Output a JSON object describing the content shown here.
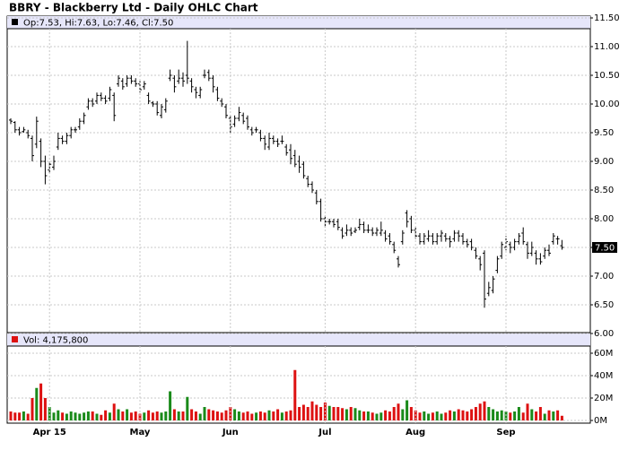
{
  "chart_data": [
    {
      "type": "ohlc",
      "title": "BBRY - Blackberry Ltd - Daily OHLC Chart",
      "legend_text": "Op:7.53, Hi:7.63, Lo:7.46, Cl:7.50",
      "last_label": "7.50",
      "color": "#000000",
      "grid": true,
      "ylim": [
        6,
        11.5
      ],
      "yticks": [
        {
          "value": 6,
          "label": "6.00"
        },
        {
          "value": 6.5,
          "label": "6.50"
        },
        {
          "value": 7,
          "label": "7.00"
        },
        {
          "value": 7.5,
          "label": "7.50"
        },
        {
          "value": 8,
          "label": "8.00"
        },
        {
          "value": 8.5,
          "label": "8.50"
        },
        {
          "value": 9,
          "label": "9.00"
        },
        {
          "value": 9.5,
          "label": "9.50"
        },
        {
          "value": 10,
          "label": "10.00"
        },
        {
          "value": 10.5,
          "label": "10.50"
        },
        {
          "value": 11,
          "label": "11.00"
        },
        {
          "value": 11.5,
          "label": "11.50"
        }
      ],
      "open": [
        9.72,
        9.68,
        9.55,
        9.52,
        9.5,
        9.4,
        9.3,
        9.35,
        9.0,
        8.85,
        8.9,
        9.25,
        9.4,
        9.35,
        9.45,
        9.55,
        9.6,
        9.7,
        9.95,
        10.05,
        10.05,
        10.15,
        10.1,
        10.1,
        10.15,
        10.35,
        10.4,
        10.35,
        10.45,
        10.4,
        10.35,
        10.3,
        10.15,
        10.02,
        10.0,
        9.8,
        9.9,
        10.45,
        10.45,
        10.4,
        10.45,
        10.5,
        10.4,
        10.25,
        10.15,
        10.5,
        10.55,
        10.45,
        10.25,
        10.05,
        9.95,
        9.75,
        9.65,
        9.75,
        9.8,
        9.75,
        9.55,
        9.55,
        9.5,
        9.4,
        9.25,
        9.4,
        9.35,
        9.35,
        9.25,
        9.2,
        9.1,
        9.0,
        8.95,
        8.7,
        8.6,
        8.45,
        8.3,
        8.0,
        7.95,
        7.95,
        7.95,
        7.8,
        7.75,
        7.8,
        7.78,
        7.85,
        7.9,
        7.8,
        7.8,
        7.75,
        7.75,
        7.75,
        7.7,
        7.55,
        7.3,
        7.6,
        8.1,
        8.0,
        7.8,
        7.7,
        7.6,
        7.65,
        7.7,
        7.6,
        7.7,
        7.7,
        7.65,
        7.65,
        7.75,
        7.7,
        7.6,
        7.6,
        7.45,
        7.3,
        7.4,
        6.7,
        6.75,
        7.1,
        7.35,
        7.5,
        7.55,
        7.5,
        7.6,
        7.75,
        7.55,
        7.4,
        7.4,
        7.3,
        7.35,
        7.45,
        7.6,
        7.65,
        7.53
      ],
      "high": [
        9.75,
        9.7,
        9.6,
        9.6,
        9.55,
        9.45,
        9.78,
        9.4,
        9.1,
        9.0,
        9.1,
        9.5,
        9.45,
        9.5,
        9.6,
        9.6,
        9.75,
        9.85,
        10.1,
        10.1,
        10.2,
        10.2,
        10.15,
        10.3,
        10.2,
        10.5,
        10.45,
        10.5,
        10.5,
        10.45,
        10.4,
        10.4,
        10.2,
        10.05,
        10.05,
        10.0,
        10.1,
        10.6,
        10.5,
        10.6,
        10.55,
        11.1,
        10.45,
        10.3,
        10.3,
        10.6,
        10.6,
        10.5,
        10.3,
        10.1,
        10.0,
        9.8,
        9.8,
        9.95,
        9.85,
        9.8,
        9.6,
        9.6,
        9.55,
        9.45,
        9.5,
        9.45,
        9.4,
        9.45,
        9.3,
        9.3,
        9.2,
        9.1,
        9.0,
        8.75,
        8.65,
        8.5,
        8.35,
        8.05,
        8.0,
        8.0,
        8.0,
        7.85,
        7.9,
        7.85,
        7.85,
        8.0,
        7.95,
        7.9,
        7.85,
        7.85,
        7.95,
        7.8,
        7.75,
        7.6,
        7.35,
        7.8,
        8.15,
        8.05,
        7.85,
        7.75,
        7.75,
        7.8,
        7.75,
        7.75,
        7.8,
        7.75,
        7.7,
        7.8,
        7.8,
        7.75,
        7.65,
        7.65,
        7.5,
        7.35,
        7.45,
        6.9,
        7.0,
        7.35,
        7.6,
        7.7,
        7.6,
        7.65,
        7.75,
        7.85,
        7.6,
        7.6,
        7.45,
        7.4,
        7.5,
        7.55,
        7.75,
        7.7,
        7.63
      ],
      "low": [
        9.65,
        9.5,
        9.45,
        9.5,
        9.4,
        9.0,
        9.23,
        8.9,
        8.6,
        8.8,
        8.85,
        9.2,
        9.3,
        9.3,
        9.4,
        9.5,
        9.55,
        9.65,
        9.9,
        9.95,
        10.0,
        10.05,
        10.0,
        10.05,
        9.7,
        10.3,
        10.25,
        10.3,
        10.35,
        10.3,
        10.2,
        10.25,
        10.0,
        9.95,
        9.8,
        9.75,
        9.85,
        10.4,
        10.2,
        10.35,
        10.3,
        10.35,
        10.2,
        10.1,
        10.1,
        10.45,
        10.4,
        10.2,
        10.05,
        9.95,
        9.75,
        9.5,
        9.6,
        9.7,
        9.65,
        9.55,
        9.45,
        9.5,
        9.35,
        9.2,
        9.2,
        9.3,
        9.25,
        9.3,
        9.1,
        8.95,
        8.9,
        8.8,
        8.7,
        8.55,
        8.45,
        8.25,
        7.95,
        7.85,
        7.9,
        7.85,
        7.8,
        7.65,
        7.7,
        7.7,
        7.75,
        7.8,
        7.75,
        7.75,
        7.7,
        7.7,
        7.7,
        7.6,
        7.55,
        7.4,
        7.15,
        7.55,
        7.85,
        7.75,
        7.65,
        7.55,
        7.55,
        7.6,
        7.55,
        7.55,
        7.6,
        7.6,
        7.5,
        7.6,
        7.6,
        7.55,
        7.5,
        7.45,
        7.3,
        7.1,
        6.45,
        6.65,
        6.7,
        7.05,
        7.3,
        7.45,
        7.4,
        7.45,
        7.55,
        7.55,
        7.3,
        7.35,
        7.2,
        7.2,
        7.3,
        7.35,
        7.55,
        7.55,
        7.46
      ],
      "close": [
        9.7,
        9.55,
        9.5,
        9.55,
        9.45,
        9.1,
        9.7,
        9.0,
        8.75,
        8.95,
        9.0,
        9.4,
        9.35,
        9.45,
        9.55,
        9.55,
        9.7,
        9.8,
        10.05,
        10.0,
        10.15,
        10.1,
        10.05,
        10.25,
        9.8,
        10.45,
        10.3,
        10.45,
        10.4,
        10.35,
        10.25,
        10.35,
        10.05,
        10.0,
        9.85,
        9.95,
        10.05,
        10.5,
        10.3,
        10.45,
        10.4,
        10.45,
        10.3,
        10.2,
        10.25,
        10.5,
        10.45,
        10.3,
        10.1,
        10.0,
        9.8,
        9.6,
        9.75,
        9.85,
        9.7,
        9.6,
        9.5,
        9.55,
        9.4,
        9.3,
        9.4,
        9.35,
        9.3,
        9.35,
        9.15,
        9.05,
        8.95,
        8.9,
        8.75,
        8.6,
        8.5,
        8.3,
        8.0,
        7.95,
        7.95,
        7.9,
        7.85,
        7.7,
        7.8,
        7.75,
        7.8,
        7.9,
        7.8,
        7.8,
        7.75,
        7.8,
        7.8,
        7.65,
        7.6,
        7.45,
        7.2,
        7.75,
        7.95,
        7.8,
        7.7,
        7.6,
        7.7,
        7.7,
        7.6,
        7.7,
        7.75,
        7.65,
        7.6,
        7.75,
        7.7,
        7.6,
        7.55,
        7.5,
        7.35,
        7.2,
        6.6,
        6.8,
        6.95,
        7.3,
        7.55,
        7.6,
        7.5,
        7.6,
        7.7,
        7.6,
        7.4,
        7.5,
        7.3,
        7.25,
        7.45,
        7.4,
        7.7,
        7.65,
        7.5
      ]
    },
    {
      "type": "bar",
      "legend_text": "Vol: 4,175,800",
      "up_color": "#1a8a1a",
      "down_color": "#dd1111",
      "grid": true,
      "ylim": [
        0,
        77
      ],
      "yticks": [
        {
          "value": 0,
          "label": "0M"
        },
        {
          "value": 20,
          "label": "20M"
        },
        {
          "value": 40,
          "label": "40M"
        },
        {
          "value": 60,
          "label": "60M"
        }
      ],
      "categories": [
        null,
        null,
        null,
        null,
        null,
        null,
        null,
        null,
        null,
        "Apr 15",
        null,
        null,
        null,
        null,
        null,
        null,
        null,
        null,
        null,
        null,
        null,
        null,
        null,
        null,
        null,
        null,
        null,
        null,
        null,
        null,
        "May",
        null,
        null,
        null,
        null,
        null,
        null,
        null,
        null,
        null,
        null,
        null,
        null,
        null,
        null,
        null,
        null,
        null,
        null,
        null,
        null,
        "Jun",
        null,
        null,
        null,
        null,
        null,
        null,
        null,
        null,
        null,
        null,
        null,
        null,
        null,
        null,
        null,
        null,
        null,
        null,
        null,
        null,
        null,
        "Jul",
        null,
        null,
        null,
        null,
        null,
        null,
        null,
        null,
        null,
        null,
        null,
        null,
        null,
        null,
        null,
        null,
        null,
        null,
        null,
        null,
        "Aug",
        null,
        null,
        null,
        null,
        null,
        null,
        null,
        null,
        null,
        null,
        null,
        null,
        null,
        null,
        null,
        null,
        null,
        null,
        null,
        null,
        "Sep",
        null,
        null,
        null,
        null,
        null,
        null,
        null,
        null,
        null,
        null,
        null,
        null,
        null
      ],
      "values": [
        8,
        7,
        7,
        8,
        6,
        20,
        29,
        33,
        20,
        12,
        7,
        9,
        7,
        6,
        8,
        7,
        6,
        7,
        8,
        8,
        6,
        5,
        9,
        7,
        15,
        10,
        8,
        10,
        7,
        8,
        6,
        7,
        9,
        7,
        8,
        7,
        8,
        26,
        10,
        8,
        8,
        21,
        10,
        8,
        6,
        12,
        10,
        9,
        8,
        7,
        9,
        12,
        10,
        8,
        7,
        8,
        6,
        7,
        8,
        7,
        9,
        8,
        10,
        7,
        8,
        9,
        45,
        12,
        14,
        12,
        17,
        14,
        12,
        16,
        13,
        12,
        12,
        11,
        10,
        12,
        11,
        9,
        8,
        8,
        7,
        6,
        7,
        9,
        8,
        12,
        15,
        10,
        18,
        12,
        9,
        7,
        8,
        6,
        7,
        8,
        6,
        7,
        9,
        8,
        10,
        9,
        8,
        10,
        12,
        15,
        17,
        12,
        10,
        8,
        9,
        8,
        7,
        8,
        12,
        7,
        15,
        10,
        8,
        12,
        6,
        9,
        8,
        9,
        4.1758
      ]
    }
  ]
}
